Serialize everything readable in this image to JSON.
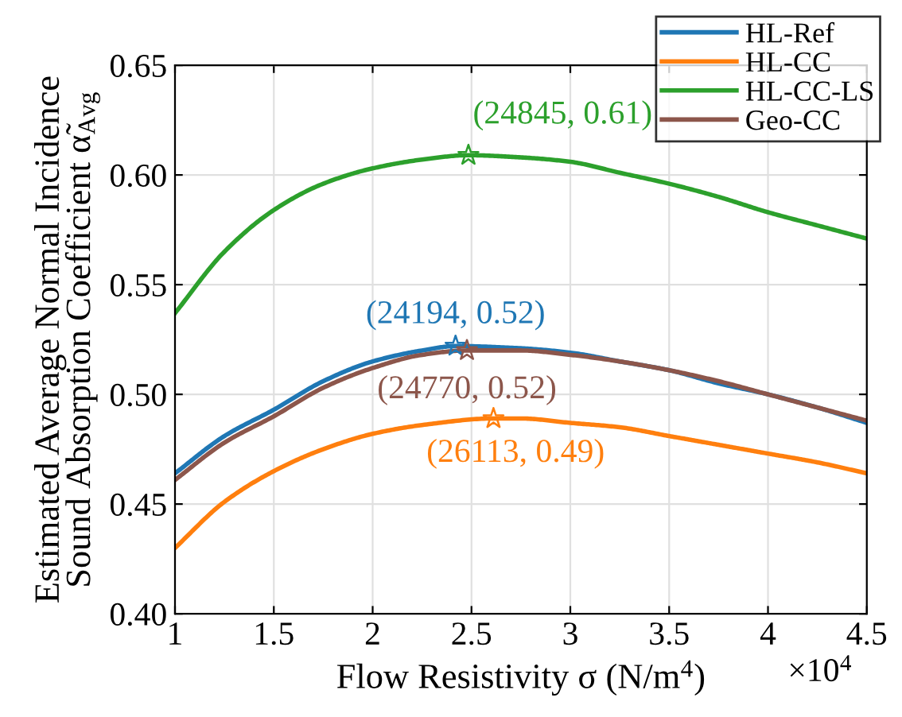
{
  "chart_data": {
    "type": "line",
    "xlabel": "Flow Resistivity σ (N/m$^{4}$)",
    "ylabel": "Estimated Average Normal Incidence\nSound Absorption Coefficient α̃$_{Avg}$",
    "xlim": [
      1,
      4.5
    ],
    "xticks": [
      1,
      1.5,
      2,
      2.5,
      3,
      3.5,
      4,
      4.5
    ],
    "ylim": [
      0.4,
      0.65
    ],
    "yticks": [
      {
        "value": 0.4,
        "label": "0.40"
      },
      {
        "value": 0.45,
        "label": "0.45"
      },
      {
        "value": 0.5,
        "label": "0.50"
      },
      {
        "value": 0.55,
        "label": "0.55"
      },
      {
        "value": 0.6,
        "label": "0.60"
      },
      {
        "value": 0.65,
        "label": "0.65"
      }
    ],
    "grid": true,
    "legend": "top right",
    "line_style": "solid",
    "series": [
      {
        "name": "HL-Ref",
        "color": "#1f77b4",
        "x": [
          1,
          1.25,
          1.5,
          1.75,
          2,
          2.25,
          2.4194,
          2.75,
          3,
          3.25,
          3.5,
          3.75,
          4,
          4.25,
          4.5
        ],
        "values": [
          0.464,
          0.481,
          0.493,
          0.506,
          0.515,
          0.52,
          0.522,
          0.521,
          0.519,
          0.515,
          0.511,
          0.505,
          0.5,
          0.494,
          0.487
        ]
      },
      {
        "name": "HL-CC",
        "color": "#ff7f0e",
        "x": [
          1,
          1.25,
          1.5,
          1.75,
          2,
          2.25,
          2.6113,
          2.75,
          3,
          3.25,
          3.5,
          3.75,
          4,
          4.25,
          4.5
        ],
        "values": [
          0.43,
          0.451,
          0.465,
          0.475,
          0.482,
          0.486,
          0.489,
          0.489,
          0.487,
          0.485,
          0.481,
          0.477,
          0.473,
          0.469,
          0.464
        ]
      },
      {
        "name": "HL-CC-LS",
        "color": "#2ca02c",
        "x": [
          1,
          1.25,
          1.5,
          1.75,
          2,
          2.25,
          2.4845,
          2.75,
          3,
          3.25,
          3.5,
          3.75,
          4,
          4.25,
          4.5
        ],
        "values": [
          0.537,
          0.565,
          0.584,
          0.596,
          0.603,
          0.607,
          0.609,
          0.608,
          0.606,
          0.601,
          0.596,
          0.59,
          0.583,
          0.577,
          0.571
        ]
      },
      {
        "name": "Geo-CC",
        "color": "#8c564b",
        "x": [
          1,
          1.25,
          1.5,
          1.75,
          2,
          2.25,
          2.477,
          2.75,
          3,
          3.25,
          3.5,
          3.75,
          4,
          4.25,
          4.5
        ],
        "values": [
          0.461,
          0.478,
          0.49,
          0.503,
          0.512,
          0.518,
          0.52,
          0.52,
          0.518,
          0.515,
          0.511,
          0.506,
          0.5,
          0.494,
          0.488
        ]
      },
      {
        "type": "scatter",
        "marker": "star",
        "color": "#1f77b4",
        "x": [
          2.4194
        ],
        "values": [
          0.522
        ]
      },
      {
        "type": "scatter",
        "marker": "star",
        "color": "#ff7f0e",
        "x": [
          2.6113
        ],
        "values": [
          0.489
        ]
      },
      {
        "type": "scatter",
        "marker": "star",
        "color": "#2ca02c",
        "x": [
          2.4845
        ],
        "values": [
          0.609
        ]
      },
      {
        "type": "scatter",
        "marker": "star",
        "color": "#8c564b",
        "x": [
          2.477
        ],
        "values": [
          0.52
        ]
      }
    ],
    "annotations": [
      {
        "text": "(24845, 0.61)",
        "x": 2.4845,
        "y": 0.609
      },
      {
        "text": "(24194, 0.52)",
        "x": 2.4194,
        "y": 0.522
      },
      {
        "text": "(24770, 0.52)",
        "x": 2.477,
        "y": 0.52
      },
      {
        "text": "(26113, 0.49)",
        "x": 2.6113,
        "y": 0.489
      },
      "×10$^{4}$"
    ]
  }
}
